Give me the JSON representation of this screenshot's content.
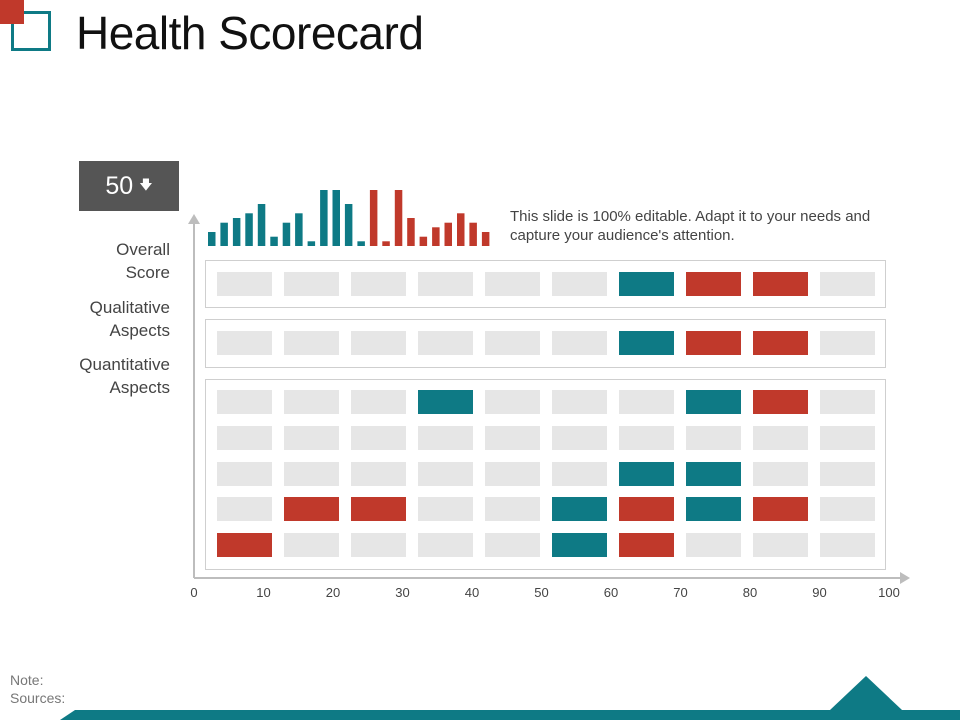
{
  "title": "Health Scorecard",
  "score": {
    "value": "50",
    "arrow": "🡇"
  },
  "description": "This slide is 100% editable. Adapt it to your needs and capture your audience's attention.",
  "row_labels": {
    "overall": [
      "Overall",
      "Score"
    ],
    "qualitative": [
      "Qualitative",
      "Aspects"
    ],
    "quantitative": [
      "Quantitative",
      "Aspects"
    ]
  },
  "footer": {
    "note": "Note:",
    "sources": "Sources:"
  },
  "colors": {
    "teal": "#0e7a85",
    "red": "#c0392b",
    "empty": "#e6e6e6",
    "dark": "#555555"
  },
  "mini_chart": {
    "values": [
      3,
      5,
      6,
      7,
      9,
      2,
      5,
      7,
      1,
      12,
      12,
      9,
      1,
      12,
      1,
      12,
      6,
      2,
      4,
      5,
      7,
      5,
      3
    ],
    "colors": [
      "teal",
      "teal",
      "teal",
      "teal",
      "teal",
      "teal",
      "teal",
      "teal",
      "teal",
      "teal",
      "teal",
      "teal",
      "teal",
      "red",
      "red",
      "red",
      "red",
      "red",
      "red",
      "red",
      "red",
      "red",
      "red"
    ]
  },
  "chart_data": {
    "type": "heatmap",
    "x_ticks": [
      "0",
      "10",
      "20",
      "30",
      "40",
      "50",
      "60",
      "70",
      "80",
      "90",
      "100"
    ],
    "rows": [
      {
        "group": "overall",
        "cells": [
          "e",
          "e",
          "e",
          "e",
          "e",
          "e",
          "t",
          "r",
          "r",
          "e"
        ]
      },
      {
        "group": "qualitative",
        "cells": [
          "e",
          "e",
          "e",
          "e",
          "e",
          "e",
          "t",
          "r",
          "r",
          "e"
        ]
      },
      {
        "group": "quantitative",
        "cells": [
          "e",
          "e",
          "e",
          "t",
          "e",
          "e",
          "e",
          "t",
          "r",
          "e"
        ]
      },
      {
        "group": "quantitative",
        "cells": [
          "e",
          "e",
          "e",
          "e",
          "e",
          "e",
          "e",
          "e",
          "e",
          "e"
        ]
      },
      {
        "group": "quantitative",
        "cells": [
          "e",
          "e",
          "e",
          "e",
          "e",
          "e",
          "t",
          "t",
          "e",
          "e"
        ]
      },
      {
        "group": "quantitative",
        "cells": [
          "e",
          "r",
          "r",
          "e",
          "e",
          "t",
          "r",
          "t",
          "r",
          "e"
        ]
      },
      {
        "group": "quantitative",
        "cells": [
          "r",
          "e",
          "e",
          "e",
          "e",
          "t",
          "r",
          "e",
          "e",
          "e"
        ]
      }
    ]
  }
}
